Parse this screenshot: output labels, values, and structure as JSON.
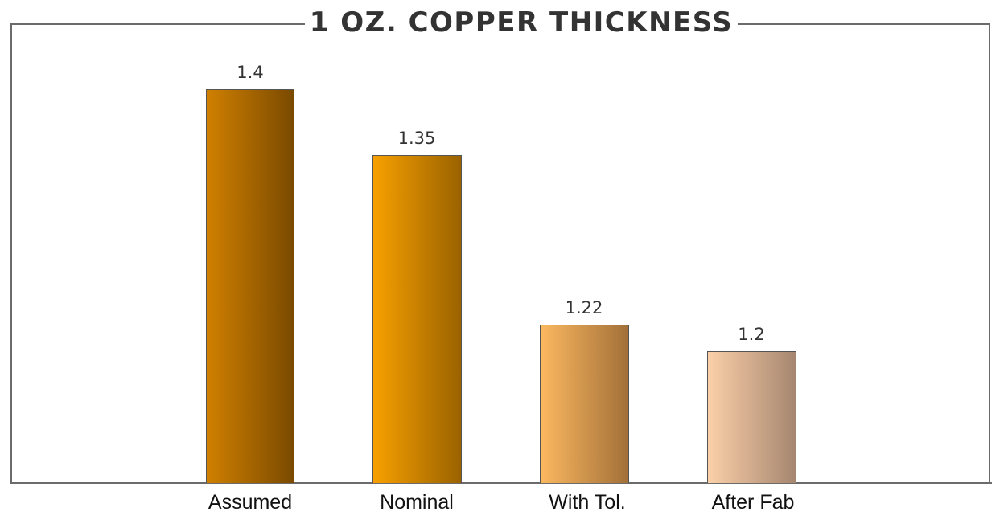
{
  "chart_data": {
    "type": "bar",
    "title": "1 OZ. COPPER THICKNESS",
    "xlabel": "",
    "ylabel": "",
    "categories": [
      "Assumed",
      "Nominal",
      "With Tol.",
      "After Fab"
    ],
    "values": [
      1.4,
      1.35,
      1.22,
      1.2
    ],
    "value_labels": [
      "1.4",
      "1.35",
      "1.22",
      "1.2"
    ],
    "colors": [
      {
        "start": "#d08000",
        "end": "#7a4a00"
      },
      {
        "start": "#f7a000",
        "end": "#9a6200"
      },
      {
        "start": "#fbb860",
        "end": "#a27038"
      },
      {
        "start": "#fbd0a8",
        "end": "#a68670"
      }
    ],
    "grid": false,
    "legend": "none",
    "ylim": [
      1.1,
      1.45
    ]
  }
}
